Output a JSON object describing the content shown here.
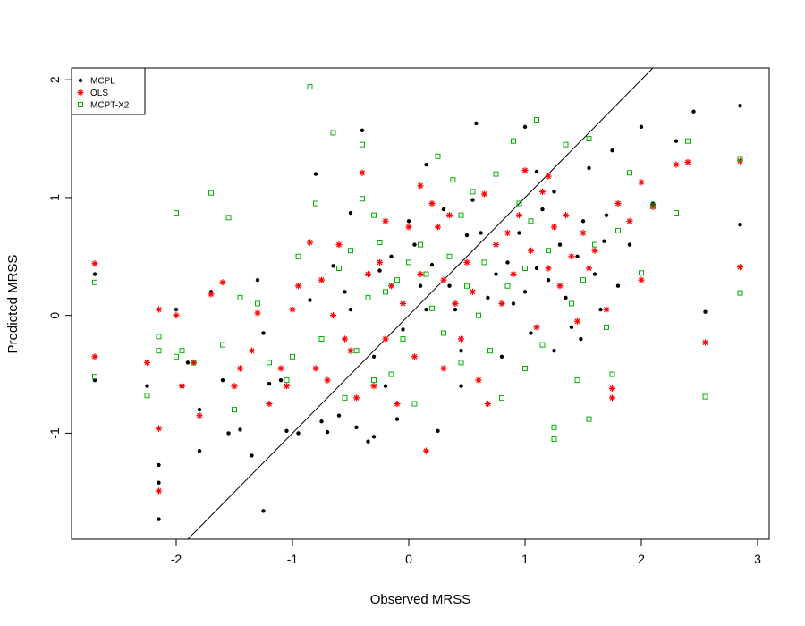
{
  "chart_data": {
    "type": "scatter",
    "title": "",
    "xlabel": "Observed MRSS",
    "ylabel": "Predicted MRSS",
    "xlim": [
      -2.9,
      3.1
    ],
    "ylim": [
      -1.9,
      2.1
    ],
    "x_ticks": [
      -2,
      -1,
      0,
      1,
      2,
      3
    ],
    "y_ticks": [
      -1,
      0,
      1,
      2
    ],
    "x_tick_labels": [
      "-2",
      "-1",
      "0",
      "1",
      "2",
      "3"
    ],
    "y_tick_labels": [
      "-1",
      "0",
      "1",
      "2"
    ],
    "grid": false,
    "legend_position": "top-left",
    "reference_line": {
      "intercept": 0,
      "slope": 1
    },
    "series": [
      {
        "name": "MCPL",
        "marker": "dot",
        "color": "#000000",
        "points": [
          [
            -2.7,
            0.35
          ],
          [
            -2.7,
            -0.55
          ],
          [
            -2.25,
            -0.6
          ],
          [
            -2.15,
            -1.27
          ],
          [
            -2.15,
            -1.42
          ],
          [
            -2.15,
            -1.73
          ],
          [
            -2.0,
            0.05
          ],
          [
            -1.95,
            -0.6
          ],
          [
            -1.8,
            -0.8
          ],
          [
            -1.8,
            -1.15
          ],
          [
            -1.7,
            0.2
          ],
          [
            -1.55,
            -1.0
          ],
          [
            -1.45,
            -0.97
          ],
          [
            -1.35,
            -1.19
          ],
          [
            -1.3,
            0.3
          ],
          [
            -1.2,
            -0.58
          ],
          [
            -1.1,
            -0.55
          ],
          [
            -1.05,
            -0.98
          ],
          [
            -0.95,
            -1.0
          ],
          [
            -0.85,
            0.13
          ],
          [
            -0.75,
            -0.9
          ],
          [
            -0.7,
            -0.99
          ],
          [
            -0.65,
            0.42
          ],
          [
            -0.6,
            -0.85
          ],
          [
            -0.55,
            0.2
          ],
          [
            -0.5,
            0.05
          ],
          [
            -0.45,
            -0.95
          ],
          [
            -0.4,
            1.57
          ],
          [
            -0.35,
            -1.07
          ],
          [
            -0.3,
            -1.03
          ],
          [
            -0.25,
            0.38
          ],
          [
            -0.2,
            -0.6
          ],
          [
            -0.15,
            0.5
          ],
          [
            -0.1,
            -0.88
          ],
          [
            -0.05,
            -0.12
          ],
          [
            0.0,
            0.8
          ],
          [
            0.05,
            0.6
          ],
          [
            0.1,
            0.25
          ],
          [
            0.15,
            0.05
          ],
          [
            0.2,
            0.43
          ],
          [
            0.25,
            -0.98
          ],
          [
            0.3,
            0.9
          ],
          [
            0.35,
            0.25
          ],
          [
            0.4,
            0.05
          ],
          [
            0.45,
            -0.3
          ],
          [
            0.5,
            0.68
          ],
          [
            0.55,
            0.98
          ],
          [
            0.58,
            1.63
          ],
          [
            0.62,
            0.7
          ],
          [
            0.68,
            0.15
          ],
          [
            0.75,
            0.35
          ],
          [
            0.8,
            -0.35
          ],
          [
            0.85,
            0.45
          ],
          [
            0.9,
            0.1
          ],
          [
            0.95,
            0.7
          ],
          [
            1.0,
            0.2
          ],
          [
            1.05,
            -0.15
          ],
          [
            1.1,
            0.4
          ],
          [
            1.15,
            0.9
          ],
          [
            1.2,
            0.3
          ],
          [
            1.25,
            -0.3
          ],
          [
            1.3,
            0.6
          ],
          [
            1.35,
            0.15
          ],
          [
            1.4,
            -0.1
          ],
          [
            1.45,
            0.5
          ],
          [
            1.5,
            0.8
          ],
          [
            1.55,
            1.25
          ],
          [
            1.6,
            0.35
          ],
          [
            1.65,
            0.05
          ],
          [
            1.7,
            0.85
          ],
          [
            1.75,
            1.4
          ],
          [
            1.8,
            0.25
          ],
          [
            1.9,
            0.6
          ],
          [
            2.0,
            1.6
          ],
          [
            2.1,
            0.95
          ],
          [
            2.3,
            1.48
          ],
          [
            2.45,
            1.73
          ],
          [
            2.55,
            0.03
          ],
          [
            2.85,
            1.78
          ],
          [
            2.85,
            0.77
          ],
          [
            -0.8,
            1.2
          ],
          [
            -0.5,
            0.87
          ],
          [
            0.15,
            1.28
          ],
          [
            1.0,
            1.6
          ],
          [
            1.25,
            1.05
          ],
          [
            -1.9,
            -0.4
          ],
          [
            -1.6,
            -0.55
          ],
          [
            -1.25,
            -0.15
          ],
          [
            -0.3,
            -0.35
          ],
          [
            0.45,
            -0.6
          ],
          [
            -1.25,
            -1.66
          ],
          [
            1.48,
            -0.2
          ],
          [
            1.1,
            1.22
          ],
          [
            1.68,
            0.63
          ]
        ]
      },
      {
        "name": "OLS",
        "marker": "star",
        "color": "#ff0000",
        "points": [
          [
            -2.7,
            0.44
          ],
          [
            -2.7,
            -0.35
          ],
          [
            -2.25,
            -0.4
          ],
          [
            -2.15,
            0.05
          ],
          [
            -2.15,
            -0.96
          ],
          [
            -2.15,
            -1.49
          ],
          [
            -2.0,
            0.0
          ],
          [
            -1.95,
            -0.6
          ],
          [
            -1.85,
            -0.4
          ],
          [
            -1.8,
            -0.85
          ],
          [
            -1.7,
            0.18
          ],
          [
            -1.6,
            0.28
          ],
          [
            -1.45,
            -0.45
          ],
          [
            -1.35,
            -0.3
          ],
          [
            -1.3,
            0.02
          ],
          [
            -1.2,
            -0.75
          ],
          [
            -1.1,
            -0.45
          ],
          [
            -1.05,
            -0.6
          ],
          [
            -0.95,
            0.25
          ],
          [
            -0.85,
            0.62
          ],
          [
            -0.8,
            -0.45
          ],
          [
            -0.75,
            0.3
          ],
          [
            -0.7,
            -0.55
          ],
          [
            -0.65,
            0.0
          ],
          [
            -0.6,
            0.6
          ],
          [
            -0.5,
            -0.3
          ],
          [
            -0.45,
            -0.7
          ],
          [
            -0.4,
            1.21
          ],
          [
            -0.35,
            0.35
          ],
          [
            -0.3,
            -0.6
          ],
          [
            -0.25,
            0.45
          ],
          [
            -0.2,
            -0.2
          ],
          [
            -0.15,
            0.25
          ],
          [
            -0.1,
            -0.75
          ],
          [
            -0.05,
            0.1
          ],
          [
            0.0,
            0.75
          ],
          [
            0.05,
            -0.35
          ],
          [
            0.1,
            0.35
          ],
          [
            0.15,
            -1.15
          ],
          [
            0.2,
            0.95
          ],
          [
            0.25,
            0.75
          ],
          [
            0.3,
            0.3
          ],
          [
            0.35,
            0.85
          ],
          [
            0.4,
            0.1
          ],
          [
            0.45,
            -0.2
          ],
          [
            0.5,
            0.45
          ],
          [
            0.55,
            0.2
          ],
          [
            0.6,
            -0.55
          ],
          [
            0.68,
            -0.75
          ],
          [
            0.75,
            0.6
          ],
          [
            0.8,
            0.1
          ],
          [
            0.85,
            0.7
          ],
          [
            0.9,
            0.35
          ],
          [
            0.95,
            0.85
          ],
          [
            1.0,
            1.23
          ],
          [
            1.05,
            0.55
          ],
          [
            1.1,
            -0.1
          ],
          [
            1.15,
            1.05
          ],
          [
            1.2,
            0.4
          ],
          [
            1.25,
            0.75
          ],
          [
            1.3,
            0.25
          ],
          [
            1.35,
            0.85
          ],
          [
            1.4,
            0.5
          ],
          [
            1.45,
            -0.05
          ],
          [
            1.5,
            0.7
          ],
          [
            1.55,
            0.4
          ],
          [
            1.6,
            0.55
          ],
          [
            1.7,
            0.05
          ],
          [
            1.75,
            -0.62
          ],
          [
            1.8,
            0.95
          ],
          [
            1.9,
            0.8
          ],
          [
            2.0,
            1.13
          ],
          [
            2.0,
            0.3
          ],
          [
            2.1,
            0.92
          ],
          [
            2.3,
            1.28
          ],
          [
            2.4,
            1.3
          ],
          [
            2.55,
            -0.23
          ],
          [
            2.85,
            1.31
          ],
          [
            2.85,
            0.41
          ],
          [
            -0.55,
            -0.2
          ],
          [
            -1.0,
            0.05
          ],
          [
            0.65,
            1.03
          ],
          [
            1.2,
            1.18
          ],
          [
            -1.5,
            -0.6
          ],
          [
            0.3,
            -0.45
          ],
          [
            -0.2,
            0.8
          ],
          [
            1.75,
            -0.7
          ],
          [
            0.1,
            1.1
          ]
        ]
      },
      {
        "name": "MCPT-X2",
        "marker": "square",
        "color": "#00b000",
        "points": [
          [
            -2.7,
            0.28
          ],
          [
            -2.7,
            -0.52
          ],
          [
            -2.25,
            -0.68
          ],
          [
            -2.15,
            -0.3
          ],
          [
            -2.15,
            -0.18
          ],
          [
            -2.0,
            0.87
          ],
          [
            -1.95,
            -0.3
          ],
          [
            -1.85,
            -0.4
          ],
          [
            -1.7,
            1.04
          ],
          [
            -1.55,
            0.83
          ],
          [
            -1.5,
            -0.8
          ],
          [
            -1.45,
            0.15
          ],
          [
            -1.3,
            0.1
          ],
          [
            -1.2,
            -0.4
          ],
          [
            -1.05,
            -0.55
          ],
          [
            -0.95,
            0.5
          ],
          [
            -0.85,
            1.94
          ],
          [
            -0.8,
            0.95
          ],
          [
            -0.75,
            -0.2
          ],
          [
            -0.65,
            1.55
          ],
          [
            -0.6,
            0.4
          ],
          [
            -0.55,
            -0.7
          ],
          [
            -0.5,
            0.55
          ],
          [
            -0.45,
            -0.3
          ],
          [
            -0.4,
            1.45
          ],
          [
            -0.4,
            0.99
          ],
          [
            -0.35,
            0.15
          ],
          [
            -0.3,
            -0.55
          ],
          [
            -0.25,
            0.62
          ],
          [
            -0.2,
            0.2
          ],
          [
            -0.15,
            -0.5
          ],
          [
            -0.1,
            0.3
          ],
          [
            -0.05,
            -0.2
          ],
          [
            0.0,
            0.45
          ],
          [
            0.05,
            -0.75
          ],
          [
            0.1,
            0.6
          ],
          [
            0.15,
            0.35
          ],
          [
            0.2,
            0.06
          ],
          [
            0.25,
            1.35
          ],
          [
            0.3,
            -0.15
          ],
          [
            0.35,
            0.5
          ],
          [
            0.38,
            1.15
          ],
          [
            0.45,
            -0.4
          ],
          [
            0.5,
            0.25
          ],
          [
            0.55,
            1.05
          ],
          [
            0.6,
            0.0
          ],
          [
            0.65,
            0.45
          ],
          [
            0.7,
            -0.3
          ],
          [
            0.8,
            -0.7
          ],
          [
            0.85,
            0.25
          ],
          [
            0.9,
            1.48
          ],
          [
            0.95,
            0.95
          ],
          [
            1.0,
            0.4
          ],
          [
            1.05,
            0.8
          ],
          [
            1.1,
            1.66
          ],
          [
            1.15,
            -0.25
          ],
          [
            1.2,
            0.55
          ],
          [
            1.25,
            -1.05
          ],
          [
            1.25,
            -0.95
          ],
          [
            1.35,
            1.45
          ],
          [
            1.4,
            0.1
          ],
          [
            1.45,
            -0.55
          ],
          [
            1.5,
            0.3
          ],
          [
            1.55,
            1.5
          ],
          [
            1.55,
            -0.88
          ],
          [
            1.6,
            0.6
          ],
          [
            1.7,
            -0.1
          ],
          [
            1.75,
            -0.5
          ],
          [
            1.8,
            0.72
          ],
          [
            1.9,
            1.21
          ],
          [
            2.0,
            0.36
          ],
          [
            2.1,
            0.93
          ],
          [
            2.3,
            0.87
          ],
          [
            2.4,
            1.48
          ],
          [
            2.55,
            -0.69
          ],
          [
            2.85,
            1.33
          ],
          [
            2.85,
            0.19
          ],
          [
            -1.6,
            -0.25
          ],
          [
            -1.0,
            -0.35
          ],
          [
            -0.3,
            0.85
          ],
          [
            0.45,
            0.85
          ],
          [
            1.0,
            -0.45
          ],
          [
            -2.0,
            -0.35
          ],
          [
            0.75,
            1.2
          ]
        ]
      }
    ]
  }
}
